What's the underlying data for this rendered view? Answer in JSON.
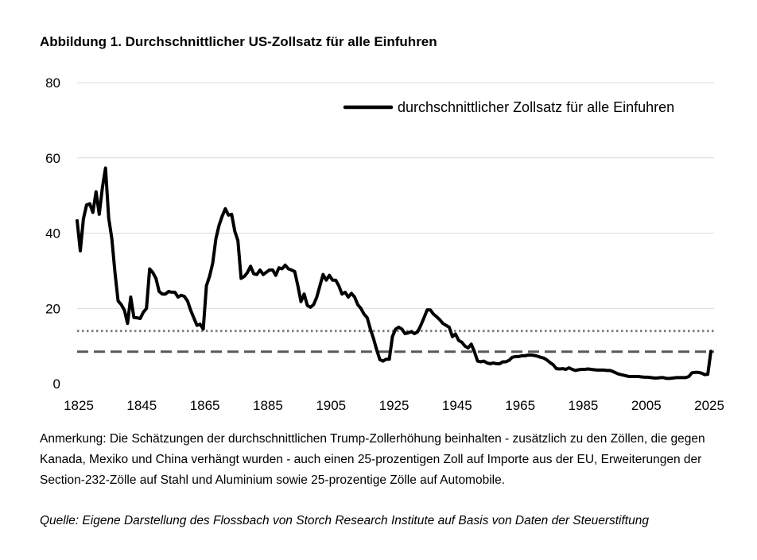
{
  "title": "Abbildung 1. Durchschnittlicher US-Zollsatz für alle Einfuhren",
  "note": "Anmerkung: Die Schätzungen der durchschnittlichen Trump-Zollerhöhung beinhalten - zusätzlich zu den Zöllen, die gegen Kanada, Mexiko und China verhängt wurden - auch einen 25-prozentigen Zoll auf Importe aus der EU, Erweiterungen der Section-232-Zölle auf Stahl und Aluminium sowie 25-prozentige Zölle auf Automobile.",
  "source": "Quelle: Eigene Darstellung des Flossbach von Storch Research Institute auf Basis von Daten der Steuerstiftung",
  "chart_data": {
    "type": "line",
    "xlim": [
      1825,
      2028
    ],
    "ylim": [
      0,
      80
    ],
    "x_ticks": [
      "1825",
      "1845",
      "1865",
      "1885",
      "1905",
      "1925",
      "1945",
      "1965",
      "1985",
      "2005",
      "2025"
    ],
    "y_ticks": [
      "0",
      "20",
      "40",
      "60",
      "80"
    ],
    "grid": true,
    "legend_position": "top-right",
    "series": [
      {
        "name": "durchschnittlicher Zollsatz für alle Einfuhren",
        "color": "#000000",
        "style": "solid",
        "points": [
          [
            1825,
            43.3
          ],
          [
            1826,
            35.3
          ],
          [
            1827,
            43.8
          ],
          [
            1828,
            47.5
          ],
          [
            1829,
            47.8
          ],
          [
            1830,
            45.5
          ],
          [
            1831,
            51.0
          ],
          [
            1832,
            45.0
          ],
          [
            1833,
            52.0
          ],
          [
            1834,
            57.3
          ],
          [
            1835,
            44.0
          ],
          [
            1836,
            38.6
          ],
          [
            1837,
            29.5
          ],
          [
            1838,
            22.0
          ],
          [
            1839,
            21.0
          ],
          [
            1840,
            19.5
          ],
          [
            1841,
            16.0
          ],
          [
            1842,
            23.0
          ],
          [
            1843,
            17.6
          ],
          [
            1844,
            17.5
          ],
          [
            1845,
            17.3
          ],
          [
            1846,
            19.0
          ],
          [
            1847,
            20.0
          ],
          [
            1848,
            30.5
          ],
          [
            1849,
            29.5
          ],
          [
            1850,
            28.0
          ],
          [
            1851,
            24.5
          ],
          [
            1852,
            23.8
          ],
          [
            1853,
            23.8
          ],
          [
            1854,
            24.5
          ],
          [
            1855,
            24.3
          ],
          [
            1856,
            24.3
          ],
          [
            1857,
            23.0
          ],
          [
            1858,
            23.5
          ],
          [
            1859,
            23.2
          ],
          [
            1860,
            22.0
          ],
          [
            1861,
            19.5
          ],
          [
            1862,
            17.5
          ],
          [
            1863,
            15.5
          ],
          [
            1864,
            15.8
          ],
          [
            1865,
            14.5
          ],
          [
            1866,
            26.0
          ],
          [
            1867,
            28.5
          ],
          [
            1868,
            32.0
          ],
          [
            1869,
            38.5
          ],
          [
            1870,
            42.0
          ],
          [
            1871,
            44.5
          ],
          [
            1872,
            46.5
          ],
          [
            1873,
            44.8
          ],
          [
            1874,
            45.0
          ],
          [
            1875,
            40.5
          ],
          [
            1876,
            38.0
          ],
          [
            1877,
            28.0
          ],
          [
            1878,
            28.5
          ],
          [
            1879,
            29.5
          ],
          [
            1880,
            31.2
          ],
          [
            1881,
            29.2
          ],
          [
            1882,
            29.0
          ],
          [
            1883,
            30.2
          ],
          [
            1884,
            29.0
          ],
          [
            1885,
            29.6
          ],
          [
            1886,
            30.2
          ],
          [
            1887,
            30.2
          ],
          [
            1888,
            28.8
          ],
          [
            1889,
            30.8
          ],
          [
            1890,
            30.5
          ],
          [
            1891,
            31.5
          ],
          [
            1892,
            30.5
          ],
          [
            1893,
            30.2
          ],
          [
            1894,
            29.8
          ],
          [
            1895,
            26.0
          ],
          [
            1896,
            21.8
          ],
          [
            1897,
            23.8
          ],
          [
            1898,
            20.8
          ],
          [
            1899,
            20.3
          ],
          [
            1900,
            21.0
          ],
          [
            1901,
            23.0
          ],
          [
            1902,
            26.0
          ],
          [
            1903,
            29.0
          ],
          [
            1904,
            27.5
          ],
          [
            1905,
            28.8
          ],
          [
            1906,
            27.5
          ],
          [
            1907,
            27.5
          ],
          [
            1908,
            26.0
          ],
          [
            1909,
            23.8
          ],
          [
            1910,
            24.3
          ],
          [
            1911,
            23.0
          ],
          [
            1912,
            24.0
          ],
          [
            1913,
            23.0
          ],
          [
            1914,
            21.0
          ],
          [
            1915,
            20.0
          ],
          [
            1916,
            18.5
          ],
          [
            1917,
            17.5
          ],
          [
            1918,
            14.5
          ],
          [
            1919,
            12.0
          ],
          [
            1920,
            9.0
          ],
          [
            1921,
            6.4
          ],
          [
            1922,
            6.0
          ],
          [
            1923,
            6.5
          ],
          [
            1924,
            6.5
          ],
          [
            1925,
            12.5
          ],
          [
            1926,
            14.5
          ],
          [
            1927,
            15.0
          ],
          [
            1928,
            14.5
          ],
          [
            1929,
            13.3
          ],
          [
            1930,
            13.5
          ],
          [
            1931,
            13.8
          ],
          [
            1932,
            13.3
          ],
          [
            1933,
            13.8
          ],
          [
            1934,
            15.5
          ],
          [
            1935,
            17.5
          ],
          [
            1936,
            19.6
          ],
          [
            1937,
            19.6
          ],
          [
            1938,
            18.5
          ],
          [
            1939,
            17.8
          ],
          [
            1940,
            17.0
          ],
          [
            1941,
            16.0
          ],
          [
            1942,
            15.5
          ],
          [
            1943,
            15.0
          ],
          [
            1944,
            12.5
          ],
          [
            1945,
            13.2
          ],
          [
            1946,
            11.5
          ],
          [
            1947,
            11.0
          ],
          [
            1948,
            10.0
          ],
          [
            1949,
            9.5
          ],
          [
            1950,
            10.5
          ],
          [
            1951,
            8.5
          ],
          [
            1952,
            6.0
          ],
          [
            1953,
            5.8
          ],
          [
            1954,
            6.0
          ],
          [
            1955,
            5.5
          ],
          [
            1956,
            5.3
          ],
          [
            1957,
            5.5
          ],
          [
            1958,
            5.3
          ],
          [
            1959,
            5.3
          ],
          [
            1960,
            5.8
          ],
          [
            1961,
            5.8
          ],
          [
            1962,
            6.2
          ],
          [
            1963,
            7.0
          ],
          [
            1964,
            7.2
          ],
          [
            1965,
            7.2
          ],
          [
            1966,
            7.4
          ],
          [
            1967,
            7.4
          ],
          [
            1968,
            7.6
          ],
          [
            1969,
            7.6
          ],
          [
            1970,
            7.5
          ],
          [
            1971,
            7.3
          ],
          [
            1972,
            7.0
          ],
          [
            1973,
            6.8
          ],
          [
            1974,
            6.3
          ],
          [
            1975,
            5.6
          ],
          [
            1976,
            5.0
          ],
          [
            1977,
            4.0
          ],
          [
            1978,
            3.9
          ],
          [
            1979,
            4.0
          ],
          [
            1980,
            3.8
          ],
          [
            1981,
            4.2
          ],
          [
            1982,
            3.8
          ],
          [
            1983,
            3.5
          ],
          [
            1984,
            3.7
          ],
          [
            1985,
            3.8
          ],
          [
            1986,
            3.8
          ],
          [
            1987,
            3.9
          ],
          [
            1988,
            3.8
          ],
          [
            1989,
            3.7
          ],
          [
            1990,
            3.6
          ],
          [
            1991,
            3.6
          ],
          [
            1992,
            3.6
          ],
          [
            1993,
            3.5
          ],
          [
            1994,
            3.5
          ],
          [
            1995,
            3.2
          ],
          [
            1996,
            2.8
          ],
          [
            1997,
            2.5
          ],
          [
            1998,
            2.3
          ],
          [
            1999,
            2.1
          ],
          [
            2000,
            1.9
          ],
          [
            2001,
            1.9
          ],
          [
            2002,
            1.9
          ],
          [
            2003,
            1.9
          ],
          [
            2004,
            1.8
          ],
          [
            2005,
            1.7
          ],
          [
            2006,
            1.7
          ],
          [
            2007,
            1.6
          ],
          [
            2008,
            1.5
          ],
          [
            2009,
            1.5
          ],
          [
            2010,
            1.6
          ],
          [
            2011,
            1.6
          ],
          [
            2012,
            1.4
          ],
          [
            2013,
            1.4
          ],
          [
            2014,
            1.5
          ],
          [
            2015,
            1.6
          ],
          [
            2016,
            1.6
          ],
          [
            2017,
            1.6
          ],
          [
            2018,
            1.6
          ],
          [
            2019,
            1.9
          ],
          [
            2020,
            2.9
          ],
          [
            2021,
            3.0
          ],
          [
            2022,
            3.0
          ],
          [
            2023,
            2.8
          ],
          [
            2024,
            2.4
          ],
          [
            2025,
            2.5
          ],
          [
            2026,
            8.6
          ]
        ]
      },
      {
        "color": "#595959",
        "style": "dashed",
        "value": 8.5
      },
      {
        "color": "#808080",
        "style": "dotted",
        "value": 14.0
      }
    ]
  }
}
